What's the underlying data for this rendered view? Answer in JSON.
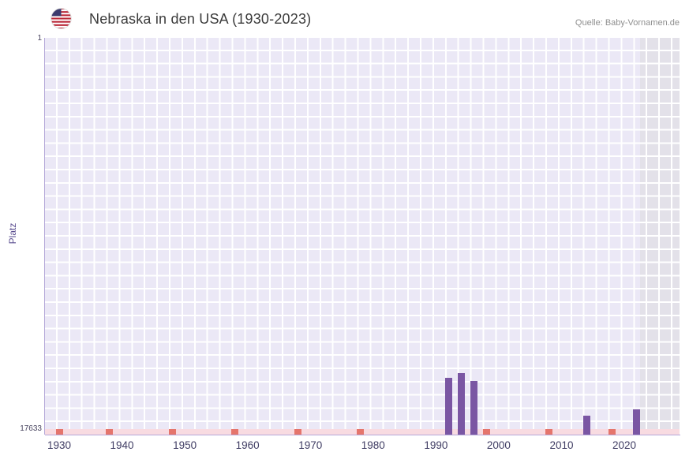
{
  "header": {
    "title": "Nebraska in den USA (1930-2023)",
    "source": "Quelle: Baby-Vornamen.de"
  },
  "chart_data": {
    "type": "bar",
    "title": "Nebraska in den USA (1930-2023)",
    "xlabel": "",
    "ylabel": "Platz",
    "y_axis": {
      "top_label": "1",
      "bottom_label": "17633",
      "min": 1,
      "max": 17633,
      "inverted": true
    },
    "x_ticks": [
      1930,
      1940,
      1950,
      1960,
      1970,
      1980,
      1990,
      2000,
      2010,
      2020
    ],
    "grid": true,
    "plot_background_color": "#ebe8f6",
    "gridline_color": "#ffffff",
    "baseline_band_color": "#f8dbe1",
    "shaded_region": {
      "from_year": 2022.5,
      "to_year": 2029,
      "color": "#e3e1e9"
    },
    "series": [
      {
        "name": "Platz",
        "color": "#7a56a3",
        "points": [
          {
            "year": 1992,
            "rank": 15100
          },
          {
            "year": 1994,
            "rank": 14900
          },
          {
            "year": 1996,
            "rank": 15250
          },
          {
            "year": 2014,
            "rank": 16800
          },
          {
            "year": 2022,
            "rank": 16500
          }
        ]
      },
      {
        "name": "unranked-marks",
        "color": "#e5756c",
        "years": [
          1930,
          1938,
          1948,
          1958,
          1968,
          1978,
          1998,
          2008,
          2018
        ]
      }
    ]
  }
}
